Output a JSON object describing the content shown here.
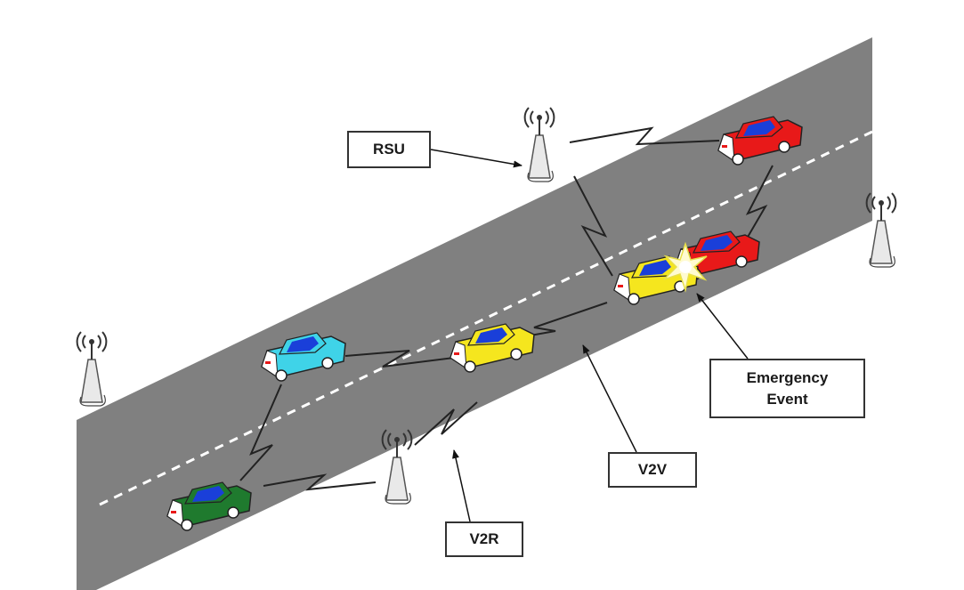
{
  "labels": {
    "rsu": "RSU",
    "emergency_line1": "Emergency",
    "emergency_line2": "Event",
    "v2v": "V2V",
    "v2r": "V2R"
  },
  "colors": {
    "road": "#808080",
    "lane_marking": "#ffffff",
    "tower": "#e6e6e6",
    "car_red": "#e81919",
    "car_yellow": "#f5e61e",
    "car_cyan": "#3fd3e8",
    "car_green": "#1f7a2e",
    "car_windows": "#1a3fd9",
    "wireless_link": "#222222"
  },
  "icons": [
    "antenna-tower-icon",
    "car-icon",
    "crash-flash-icon",
    "wireless-link-icon",
    "arrow-icon"
  ]
}
